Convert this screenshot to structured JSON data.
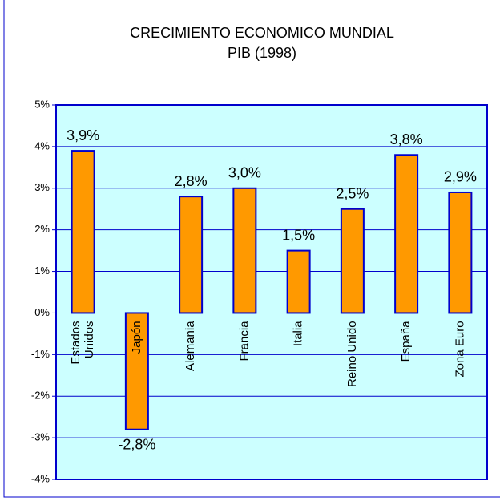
{
  "chart_data": {
    "type": "bar",
    "title": "CRECIMIENTO ECONOMICO MUNDIAL",
    "subtitle": "PIB (1998)",
    "categories": [
      "Estados Unidos",
      "Japón",
      "Alemania",
      "Francia",
      "Italia",
      "Reino Unido",
      "España",
      "Zona Euro"
    ],
    "values": [
      3.9,
      -2.8,
      2.8,
      3.0,
      1.5,
      2.5,
      3.8,
      2.9
    ],
    "value_labels": [
      "3,9%",
      "-2,8%",
      "2,8%",
      "3,0%",
      "1,5%",
      "2,5%",
      "3,8%",
      "2,9%"
    ],
    "color": "#ff9900",
    "ylim": [
      -4,
      5
    ],
    "yticks": [
      {
        "value": -4,
        "label": "-4%"
      },
      {
        "value": -3,
        "label": "-3%"
      },
      {
        "value": -2,
        "label": "-2%"
      },
      {
        "value": -1,
        "label": "-1%"
      },
      {
        "value": 0,
        "label": "0%"
      },
      {
        "value": 1,
        "label": "1%"
      },
      {
        "value": 2,
        "label": "2%"
      },
      {
        "value": 3,
        "label": "3%"
      },
      {
        "value": 4,
        "label": "4%"
      },
      {
        "value": 5,
        "label": "5%"
      }
    ],
    "grid": true
  }
}
